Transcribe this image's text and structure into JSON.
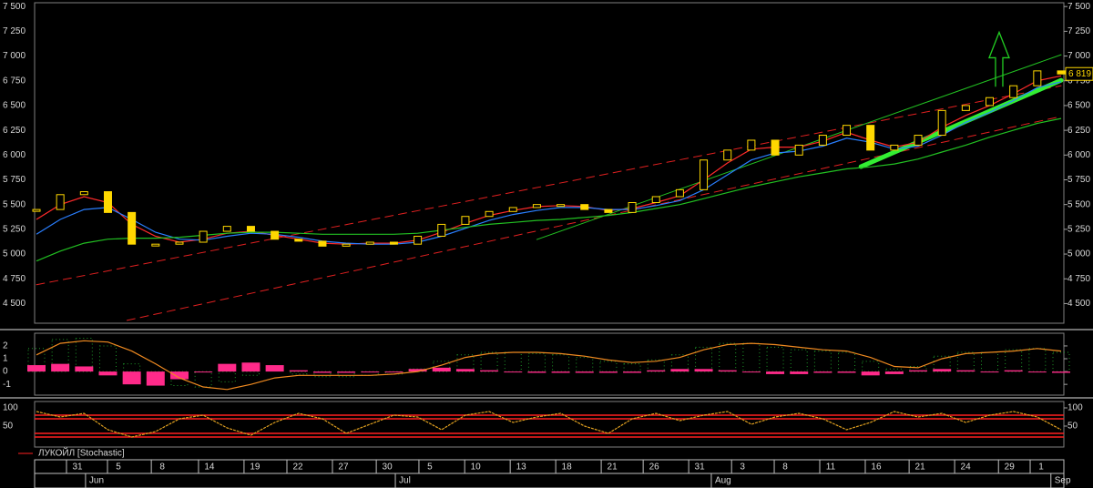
{
  "chart_data": [
    {
      "type": "candlestick",
      "xlim": [
        0,
        43
      ],
      "ylim": [
        4320,
        7520
      ],
      "yticks": [
        {
          "value": 7500,
          "label": "7 500"
        },
        {
          "value": 7250,
          "label": "7 250"
        },
        {
          "value": 7000,
          "label": "7 000"
        },
        {
          "value": 6750,
          "label": "6 750"
        },
        {
          "value": 6500,
          "label": "6 500"
        },
        {
          "value": 6250,
          "label": "6 250"
        },
        {
          "value": 6000,
          "label": "6 000"
        },
        {
          "value": 5750,
          "label": "5 750"
        },
        {
          "value": 5500,
          "label": "5 500"
        },
        {
          "value": 5250,
          "label": "5 250"
        },
        {
          "value": 5000,
          "label": "5 000"
        },
        {
          "value": 4750,
          "label": "4 750"
        },
        {
          "value": 4500,
          "label": "4 500"
        }
      ],
      "close": [
        5450,
        5600,
        5630,
        5420,
        5100,
        5100,
        5120,
        5230,
        5280,
        5230,
        5150,
        5130,
        5080,
        5100,
        5120,
        5100,
        5180,
        5300,
        5380,
        5430,
        5470,
        5500,
        5500,
        5450,
        5420,
        5520,
        5580,
        5650,
        5950,
        6050,
        6150,
        6000,
        6100,
        6200,
        6300,
        6050,
        6100,
        6200,
        6450,
        6500,
        6580,
        6700,
        6850,
        6819
      ],
      "close_color": "#ffd800",
      "moving_averages": [
        {
          "color": "#ff2a2a",
          "values": [
            5350,
            5500,
            5580,
            5520,
            5300,
            5180,
            5120,
            5150,
            5210,
            5230,
            5190,
            5150,
            5110,
            5100,
            5110,
            5110,
            5140,
            5220,
            5310,
            5390,
            5440,
            5480,
            5490,
            5480,
            5440,
            5460,
            5520,
            5590,
            5750,
            5920,
            6060,
            6080,
            6080,
            6140,
            6230,
            6150,
            6080,
            6130,
            6280,
            6400,
            6500,
            6620,
            6750,
            6800
          ]
        },
        {
          "color": "#2a7fff",
          "values": [
            5200,
            5350,
            5450,
            5470,
            5350,
            5220,
            5150,
            5140,
            5180,
            5210,
            5200,
            5170,
            5130,
            5110,
            5100,
            5100,
            5120,
            5180,
            5260,
            5340,
            5400,
            5440,
            5470,
            5470,
            5450,
            5450,
            5490,
            5540,
            5650,
            5800,
            5950,
            6020,
            6040,
            6090,
            6170,
            6130,
            6060,
            6090,
            6200,
            6330,
            6430,
            6550,
            6680,
            6740
          ]
        },
        {
          "color": "#22c022",
          "values": [
            4930,
            5030,
            5110,
            5150,
            5160,
            5160,
            5170,
            5190,
            5210,
            5220,
            5220,
            5210,
            5200,
            5200,
            5200,
            5200,
            5210,
            5240,
            5270,
            5300,
            5320,
            5340,
            5350,
            5370,
            5390,
            5420,
            5460,
            5500,
            5560,
            5620,
            5680,
            5730,
            5780,
            5820,
            5860,
            5880,
            5910,
            5960,
            6030,
            6100,
            6180,
            6250,
            6320,
            6370
          ]
        }
      ],
      "trendlines": [
        {
          "color": "#e02020",
          "dashed": true,
          "width": 1,
          "points": [
            [
              0,
              4690
            ],
            [
              43,
              6700
            ]
          ]
        },
        {
          "color": "#e02020",
          "dashed": true,
          "width": 1,
          "points": [
            [
              3.8,
              4330
            ],
            [
              43,
              6390
            ]
          ]
        },
        {
          "color": "#22c022",
          "dashed": false,
          "width": 1,
          "points": [
            [
              21,
              5147
            ],
            [
              43,
              7013
            ]
          ]
        },
        {
          "color": "#33ee33",
          "dashed": false,
          "width": 5,
          "points": [
            [
              34.6,
              5883
            ],
            [
              43,
              6755
            ]
          ]
        }
      ],
      "arrow": {
        "color": "#22cc22",
        "x": 40.4,
        "from": 6690,
        "to": 7240
      },
      "last_price": {
        "value": 6819,
        "label": "6 819"
      },
      "xticks": [
        {
          "value": 1.72,
          "label": "31"
        },
        {
          "value": 3.44,
          "label": "5"
        },
        {
          "value": 5.28,
          "label": "8"
        },
        {
          "value": 7.26,
          "label": "14"
        },
        {
          "value": 9.17,
          "label": "19"
        },
        {
          "value": 10.97,
          "label": "22"
        },
        {
          "value": 12.88,
          "label": "27"
        },
        {
          "value": 14.72,
          "label": "30"
        },
        {
          "value": 16.51,
          "label": "5"
        },
        {
          "value": 18.43,
          "label": "10"
        },
        {
          "value": 20.34,
          "label": "13"
        },
        {
          "value": 22.25,
          "label": "18"
        },
        {
          "value": 24.16,
          "label": "21"
        },
        {
          "value": 25.92,
          "label": "26"
        },
        {
          "value": 27.83,
          "label": "31"
        },
        {
          "value": 29.63,
          "label": "3"
        },
        {
          "value": 31.42,
          "label": "8"
        },
        {
          "value": 33.33,
          "label": "11"
        },
        {
          "value": 35.24,
          "label": "16"
        },
        {
          "value": 37.08,
          "label": "21"
        },
        {
          "value": 38.99,
          "label": "24"
        },
        {
          "value": 40.83,
          "label": "29"
        },
        {
          "value": 42.16,
          "label": "1"
        }
      ],
      "months": [
        {
          "value": 2.29,
          "label": "Jun"
        },
        {
          "value": 15.29,
          "label": "Jul"
        },
        {
          "value": 28.55,
          "label": "Aug"
        },
        {
          "value": 42.8,
          "label": "Sep"
        }
      ]
    },
    {
      "type": "macd",
      "xlim": [
        0,
        43
      ],
      "ylim": [
        -1.7,
        2.85
      ],
      "yticks": [
        2,
        1,
        0,
        -1
      ],
      "macd": {
        "color": "#1f9a2a",
        "values": [
          1.8,
          2.5,
          2.6,
          2.0,
          0.6,
          -0.5,
          -1.1,
          -1.2,
          -0.8,
          -0.3,
          0.0,
          -0.2,
          -0.4,
          -0.4,
          -0.3,
          -0.2,
          0.2,
          0.8,
          1.3,
          1.5,
          1.5,
          1.4,
          1.3,
          1.1,
          0.8,
          0.6,
          0.9,
          1.3,
          1.9,
          2.2,
          2.2,
          1.9,
          1.7,
          1.6,
          1.5,
          0.8,
          0.2,
          0.4,
          1.2,
          1.5,
          1.5,
          1.7,
          1.8,
          1.5
        ]
      },
      "signal": {
        "color": "#f08a20",
        "values": [
          1.3,
          2.2,
          2.4,
          2.3,
          1.6,
          0.6,
          -0.5,
          -1.2,
          -1.4,
          -1.0,
          -0.5,
          -0.3,
          -0.3,
          -0.3,
          -0.3,
          -0.2,
          0.0,
          0.5,
          1.1,
          1.4,
          1.5,
          1.5,
          1.4,
          1.2,
          0.9,
          0.7,
          0.8,
          1.1,
          1.7,
          2.1,
          2.2,
          2.1,
          1.9,
          1.7,
          1.6,
          1.1,
          0.4,
          0.3,
          1.0,
          1.4,
          1.5,
          1.6,
          1.8,
          1.6
        ]
      },
      "histogram": {
        "color": "#ff2a8a",
        "values": [
          0.5,
          0.6,
          0.4,
          -0.3,
          -1.0,
          -1.1,
          -0.6,
          0.0,
          0.6,
          0.7,
          0.5,
          0.1,
          -0.1,
          -0.1,
          0.0,
          0.0,
          0.2,
          0.3,
          0.2,
          0.1,
          0.0,
          -0.1,
          -0.1,
          -0.1,
          -0.1,
          -0.1,
          0.1,
          0.2,
          0.2,
          0.1,
          0.0,
          -0.2,
          -0.2,
          -0.1,
          -0.1,
          -0.3,
          -0.2,
          0.1,
          0.2,
          0.1,
          0.0,
          0.1,
          0.0,
          -0.1
        ]
      }
    },
    {
      "type": "stochastic",
      "xlim": [
        0,
        43
      ],
      "ylim": [
        0,
        100
      ],
      "yticks": [
        100,
        50
      ],
      "levels": [
        80,
        70,
        30,
        20
      ],
      "level_color": "#ff2020",
      "k": {
        "color": "#e0a020",
        "values": [
          90,
          75,
          85,
          40,
          20,
          35,
          70,
          80,
          45,
          25,
          60,
          85,
          70,
          30,
          55,
          80,
          75,
          40,
          80,
          90,
          60,
          75,
          85,
          50,
          30,
          70,
          85,
          65,
          80,
          90,
          55,
          75,
          85,
          70,
          40,
          60,
          90,
          75,
          85,
          60,
          80,
          90,
          75,
          40
        ]
      },
      "legend": {
        "text": "ЛУКОЙЛ [Stochastic]",
        "color": "#ff2020"
      }
    }
  ]
}
